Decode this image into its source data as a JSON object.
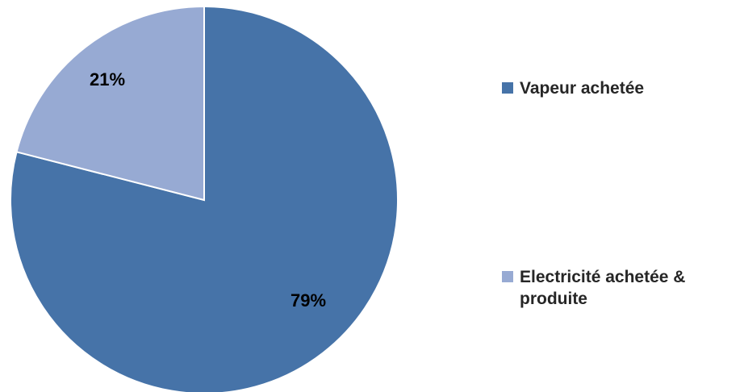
{
  "chart_data": {
    "type": "pie",
    "title": "",
    "legend_position": "right",
    "slices": [
      {
        "name": "Vapeur achetée",
        "value": 79,
        "label": "79%",
        "color": "#4673a8"
      },
      {
        "name": "Electricité achetée & produite",
        "value": 21,
        "label": "21%",
        "color": "#97aad3"
      }
    ]
  }
}
